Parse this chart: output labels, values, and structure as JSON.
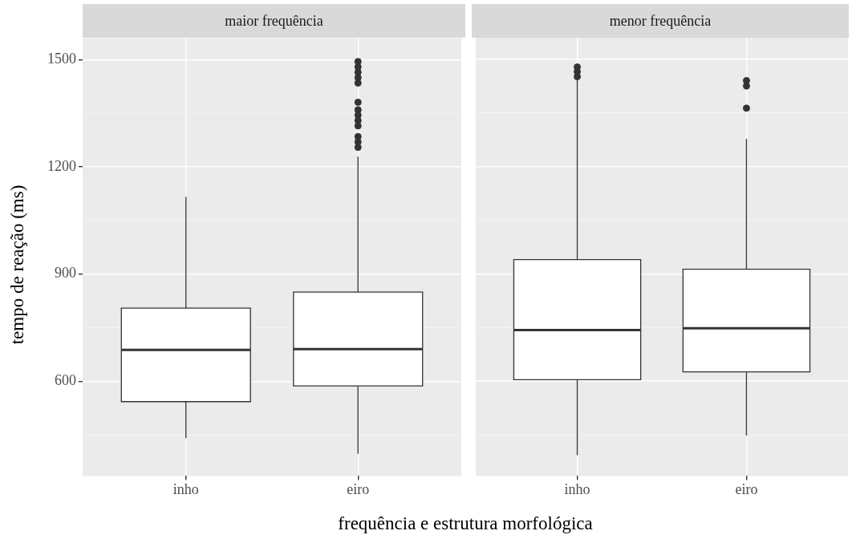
{
  "chart_data": [
    {
      "type": "box",
      "title": "maior frequência",
      "ylabel": "tempo de reação (ms)",
      "xlabel": "frequência e estrutura morfológica",
      "categories": [
        "inho",
        "eiro"
      ],
      "boxes": [
        {
          "low": 441,
          "q1": 543,
          "median": 688,
          "q3": 805,
          "high": 1116
        },
        {
          "low": 397,
          "q1": 587,
          "median": 690,
          "q3": 850,
          "high": 1229,
          "outliers": [
            1495,
            1480,
            1465,
            1450,
            1435,
            1381,
            1360,
            1345,
            1330,
            1315,
            1285,
            1270,
            1255
          ]
        }
      ],
      "ylim": [
        335,
        1560
      ],
      "yticks": [
        {
          "value": 450,
          "label": null
        },
        600,
        {
          "value": 750,
          "label": null
        },
        900,
        {
          "value": 1050,
          "label": null
        },
        1200,
        {
          "value": 1350,
          "label": null
        },
        1500
      ],
      "grid": true
    },
    {
      "type": "box",
      "title": "menor frequência",
      "categories": [
        "inho",
        "eiro"
      ],
      "boxes": [
        {
          "low": 393,
          "q1": 604,
          "median": 743,
          "q3": 940,
          "high": 1443,
          "outliers": [
            1478,
            1465,
            1451
          ]
        },
        {
          "low": 448,
          "q1": 626,
          "median": 748,
          "q3": 913,
          "high": 1277,
          "outliers": [
            1440,
            1425,
            1363
          ]
        }
      ],
      "ylim": [
        335,
        1560
      ],
      "yticks": [
        {
          "value": 450,
          "label": null
        },
        600,
        {
          "value": 750,
          "label": null
        },
        900,
        {
          "value": 1050,
          "label": null
        },
        1200,
        {
          "value": 1350,
          "label": null
        },
        1500
      ],
      "grid": true,
      "tick_labels": "x"
    }
  ]
}
